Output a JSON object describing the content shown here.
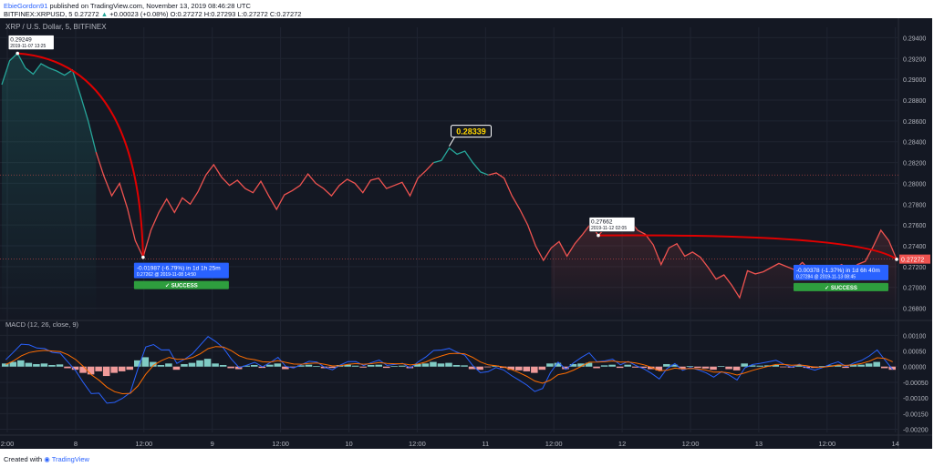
{
  "header": {
    "user": "EbieGordon91",
    "published": " published on TradingView.com, November 13, 2019 08:46:28 UTC",
    "symbol": "BITFINEX:XRPUSD, 5",
    "last": "0.27272",
    "change": "+0.00023 (+0.08%)",
    "ohlc": "O:0.27272 H:0.27293 L:0.27272 C:0.27272"
  },
  "footer": {
    "created": "Created with",
    "brand": "TradingView"
  },
  "colors": {
    "bg": "#141823",
    "up": "#26a69a",
    "down": "#ef5350",
    "arc": "#e00000",
    "macd": "#2962ff",
    "signal": "#ff6d00",
    "success": "#2e9e3e",
    "label": "#2962ff"
  },
  "chart_data": [
    {
      "type": "line",
      "title": "XRP / U.S. Dollar, 5, BITFINEX",
      "x_ticks": [
        "2:00",
        "8",
        "12:00",
        "9",
        "12:00",
        "10",
        "12:00",
        "11",
        "12:00",
        "12",
        "12:00",
        "13",
        "12:00",
        "14"
      ],
      "y_ticks": [
        "0.29400",
        "0.29200",
        "0.29000",
        "0.28800",
        "0.28600",
        "0.28400",
        "0.28200",
        "0.28000",
        "0.27800",
        "0.27600",
        "0.27400",
        "0.27200",
        "0.27000",
        "0.26800"
      ],
      "ylim": [
        0.267,
        0.295
      ],
      "price_tag": "0.27272",
      "series": [
        {
          "values": [
            0.2895,
            0.2918,
            0.2925,
            0.2911,
            0.2905,
            0.2915,
            0.2911,
            0.2908,
            0.2904,
            0.2909,
            0.2885,
            0.286,
            0.283,
            0.2807,
            0.2788,
            0.28,
            0.2776,
            0.2745,
            0.2729,
            0.2755,
            0.2772,
            0.2785,
            0.2772,
            0.2786,
            0.278,
            0.2792,
            0.2808,
            0.2818,
            0.2806,
            0.2798,
            0.2803,
            0.2795,
            0.2791,
            0.2802,
            0.2788,
            0.2775,
            0.2789,
            0.2793,
            0.2798,
            0.2809,
            0.28,
            0.2795,
            0.2788,
            0.2798,
            0.2804,
            0.28,
            0.2791,
            0.2803,
            0.2805,
            0.2795,
            0.2798,
            0.2801,
            0.2788,
            0.2805,
            0.2812,
            0.282,
            0.2822,
            0.2834,
            0.2828,
            0.2831,
            0.282,
            0.2811,
            0.2808,
            0.281,
            0.2805,
            0.2788,
            0.2775,
            0.276,
            0.274,
            0.2726,
            0.2738,
            0.2744,
            0.273,
            0.2742,
            0.2751,
            0.2761,
            0.275,
            0.2758,
            0.2762,
            0.2755,
            0.2765,
            0.2755,
            0.2751,
            0.2741,
            0.2722,
            0.2738,
            0.2742,
            0.273,
            0.2734,
            0.2729,
            0.2719,
            0.2708,
            0.2712,
            0.2702,
            0.269,
            0.2716,
            0.2713,
            0.2715,
            0.2719,
            0.2723,
            0.272,
            0.2717,
            0.2724,
            0.2716,
            0.2711,
            0.2713,
            0.2718,
            0.2722,
            0.2714,
            0.2722,
            0.2725,
            0.2739,
            0.2755,
            0.2745,
            0.2727
          ]
        }
      ],
      "annotations": [
        {
          "text": "0.29249",
          "sub": "2019-11-07 13:25"
        },
        {
          "text": "0.28339"
        },
        {
          "text": "0.27662",
          "sub": "2019-11-12 02:05"
        },
        {
          "text": "-0.01987 (-6.79%) in 1d 1h 25m",
          "sub": "0.27262 @ 2019-11-08 14:50",
          "status": "✓ SUCCESS"
        },
        {
          "text": "-0.00378 (-1.37%) in 1d 6h 40m",
          "sub": "0.27284 @ 2019-11-13 08:45",
          "status": "✓ SUCCESS"
        }
      ]
    },
    {
      "type": "bar",
      "title": "MACD (12, 26, close, 9)",
      "y_ticks": [
        "0.00100",
        "0.00050",
        "0.00000",
        "-0.00050",
        "-0.00100",
        "-0.00150",
        "-0.00200"
      ],
      "ylim": [
        -0.0021,
        0.0013
      ],
      "series": [
        {
          "name": "histogram",
          "values": [
            0.0001,
            0.00015,
            0.0002,
            0.00012,
            8e-05,
            0.0001,
            5e-05,
            7e-05,
            -5e-05,
            -0.0001,
            -0.0002,
            -0.00025,
            -0.00015,
            -0.0003,
            -0.0002,
            -0.00015,
            -0.0001,
            0.0002,
            0.0003,
            0.00015,
            5e-05,
            0.0001,
            -0.0001,
            8e-05,
            0.00012,
            0.0002,
            0.00025,
            0.0001,
            5e-05,
            -5e-05,
            -8e-05,
            3e-05,
            5e-05,
            -4e-05,
            6e-05,
            0.0001,
            -8e-05,
            -2e-05,
            4e-05,
            6e-05,
            2e-05,
            -5e-05,
            -4e-05,
            5e-05,
            6e-05,
            3e-05,
            -3e-05,
            5e-05,
            6e-05,
            -4e-05,
            2e-05,
            3e-05,
            -5e-05,
            8e-05,
            0.0001,
            0.00015,
            0.0001,
            0.00012,
            5e-05,
            4e-05,
            -8e-05,
            -0.0001,
            -2e-05,
            3e-05,
            -4e-05,
            -0.0001,
            -0.00012,
            -0.00015,
            -0.0002,
            -0.0001,
            0.0001,
            0.00012,
            -8e-05,
            8e-05,
            0.0001,
            0.00012,
            -5e-05,
            4e-05,
            6e-05,
            -4e-05,
            6e-05,
            -3e-05,
            -4e-05,
            -8e-05,
            -0.00012,
            8e-05,
            6e-05,
            -8e-05,
            2e-05,
            -4e-05,
            -6e-05,
            -0.0001,
            2e-05,
            -8e-05,
            -0.00012,
            0.0001,
            4e-05,
            3e-05,
            4e-05,
            5e-05,
            -2e-05,
            -3e-05,
            4e-05,
            -4e-05,
            -4e-05,
            2e-05,
            4e-05,
            5e-05,
            -4e-05,
            5e-05,
            6e-05,
            0.0001,
            0.00015,
            -5e-05,
            -0.0001
          ]
        }
      ]
    }
  ]
}
